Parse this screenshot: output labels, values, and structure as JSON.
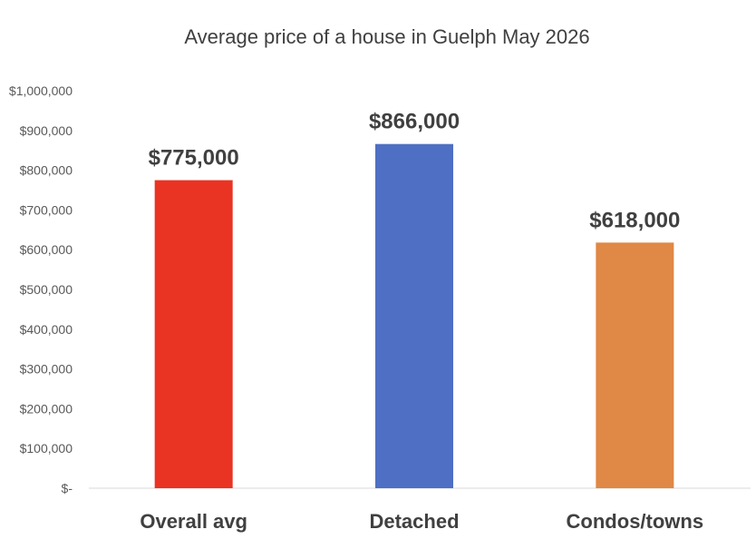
{
  "chart_data": {
    "type": "bar",
    "title": "Average price of a house in Guelph May 2026",
    "xlabel": "",
    "ylabel": "",
    "categories": [
      "Overall avg",
      "Detached",
      "Condos/towns"
    ],
    "values": [
      775000,
      866000,
      618000
    ],
    "data_labels": [
      "$775,000",
      "$866,000",
      "$618,000"
    ],
    "bar_colors": [
      "#e93323",
      "#4e6fc3",
      "#e08845"
    ],
    "ylim": [
      0,
      1000000
    ],
    "yticks": [
      0,
      100000,
      200000,
      300000,
      400000,
      500000,
      600000,
      700000,
      800000,
      900000,
      1000000
    ],
    "ytick_labels": [
      "$-",
      "$100,000",
      "$200,000",
      "$300,000",
      "$400,000",
      "$500,000",
      "$600,000",
      "$700,000",
      "$800,000",
      "$900,000",
      "$1,000,000"
    ],
    "grid": false,
    "legend": "none"
  }
}
